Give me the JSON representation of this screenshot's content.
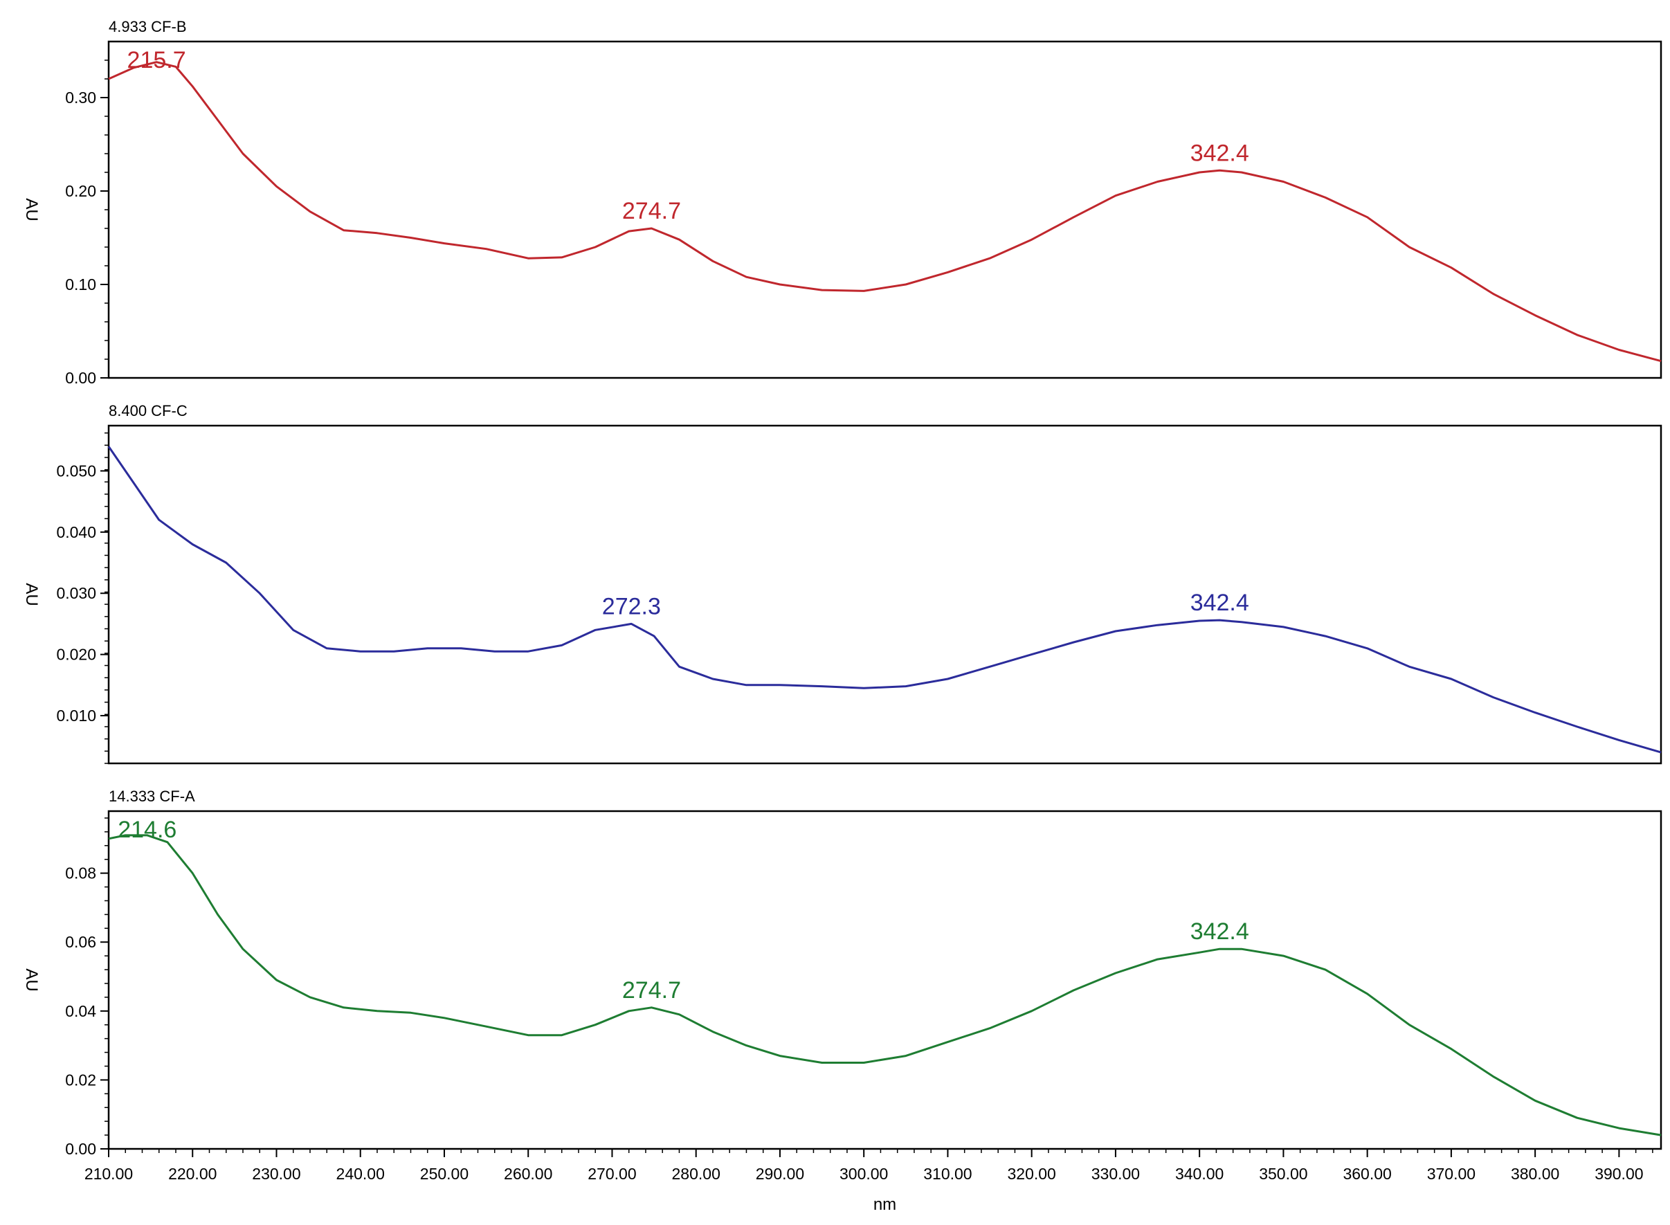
{
  "chart_data": [
    {
      "type": "line",
      "title": "4.933 CF-B",
      "ylabel": "AU",
      "xlabel": "",
      "xlim": [
        210,
        395
      ],
      "ylim": [
        0.0,
        0.36
      ],
      "y_ticks": [
        0.0,
        0.1,
        0.2,
        0.3
      ],
      "y_tick_labels": [
        "0.00",
        "0.10",
        "0.20",
        "0.30"
      ],
      "color": "#c0272d",
      "series": [
        {
          "x": [
            210,
            213,
            215.7,
            218,
            220,
            223,
            226,
            230,
            234,
            238,
            242,
            246,
            250,
            255,
            260,
            264,
            268,
            272,
            274.7,
            278,
            282,
            286,
            290,
            295,
            300,
            305,
            310,
            315,
            320,
            325,
            330,
            335,
            340,
            342.4,
            345,
            350,
            355,
            360,
            365,
            370,
            375,
            380,
            385,
            390,
            395
          ],
          "values": [
            0.32,
            0.332,
            0.338,
            0.333,
            0.312,
            0.276,
            0.24,
            0.205,
            0.178,
            0.158,
            0.155,
            0.15,
            0.144,
            0.138,
            0.128,
            0.129,
            0.14,
            0.157,
            0.16,
            0.148,
            0.125,
            0.108,
            0.1,
            0.094,
            0.093,
            0.1,
            0.113,
            0.128,
            0.148,
            0.172,
            0.195,
            0.21,
            0.22,
            0.222,
            0.22,
            0.21,
            0.193,
            0.172,
            0.14,
            0.118,
            0.09,
            0.067,
            0.046,
            0.03,
            0.018
          ]
        }
      ],
      "annotations": [
        {
          "x": 215.7,
          "y": 0.338,
          "text": "215.7"
        },
        {
          "x": 274.7,
          "y": 0.16,
          "text": "274.7"
        },
        {
          "x": 342.4,
          "y": 0.222,
          "text": "342.4"
        }
      ]
    },
    {
      "type": "line",
      "title": "8.400 CF-C",
      "ylabel": "AU",
      "xlabel": "",
      "xlim": [
        210,
        395
      ],
      "ylim": [
        0.0022,
        0.0574
      ],
      "y_ticks": [
        0.01,
        0.02,
        0.03,
        0.04,
        0.05
      ],
      "y_tick_labels": [
        "0.010",
        "0.020",
        "0.030",
        "0.040",
        "0.050"
      ],
      "color": "#2b2c9b",
      "series": [
        {
          "x": [
            210,
            213,
            216,
            220,
            224,
            228,
            232,
            236,
            240,
            244,
            248,
            252,
            256,
            260,
            264,
            268,
            272.3,
            275,
            278,
            282,
            286,
            290,
            295,
            300,
            305,
            310,
            315,
            320,
            325,
            330,
            335,
            340,
            342.4,
            345,
            350,
            355,
            360,
            365,
            370,
            375,
            380,
            385,
            390,
            395
          ],
          "values": [
            0.054,
            0.048,
            0.042,
            0.038,
            0.035,
            0.03,
            0.024,
            0.021,
            0.0205,
            0.0205,
            0.021,
            0.021,
            0.0205,
            0.0205,
            0.0215,
            0.024,
            0.025,
            0.023,
            0.018,
            0.016,
            0.015,
            0.015,
            0.0148,
            0.0145,
            0.0148,
            0.016,
            0.018,
            0.02,
            0.022,
            0.0238,
            0.0248,
            0.0255,
            0.0256,
            0.0253,
            0.0245,
            0.023,
            0.021,
            0.018,
            0.016,
            0.013,
            0.0105,
            0.0082,
            0.006,
            0.004
          ]
        }
      ],
      "annotations": [
        {
          "x": 272.3,
          "y": 0.025,
          "text": "272.3"
        },
        {
          "x": 342.4,
          "y": 0.0256,
          "text": "342.4"
        }
      ]
    },
    {
      "type": "line",
      "title": "14.333 CF-A",
      "ylabel": "AU",
      "xlabel": "nm",
      "xlim": [
        210,
        395
      ],
      "ylim": [
        0.0,
        0.098
      ],
      "y_ticks": [
        0.0,
        0.02,
        0.04,
        0.06,
        0.08
      ],
      "y_tick_labels": [
        "0.00",
        "0.02",
        "0.04",
        "0.06",
        "0.08"
      ],
      "x_ticks": [
        210,
        220,
        230,
        240,
        250,
        260,
        270,
        280,
        290,
        300,
        310,
        320,
        330,
        340,
        350,
        360,
        370,
        380,
        390
      ],
      "x_tick_labels": [
        "210.00",
        "220.00",
        "230.00",
        "240.00",
        "250.00",
        "260.00",
        "270.00",
        "280.00",
        "290.00",
        "300.00",
        "310.00",
        "320.00",
        "330.00",
        "340.00",
        "350.00",
        "360.00",
        "370.00",
        "380.00",
        "390.00"
      ],
      "color": "#1e7d32",
      "series": [
        {
          "x": [
            210,
            212,
            214.6,
            217,
            220,
            223,
            226,
            230,
            234,
            238,
            242,
            246,
            250,
            255,
            260,
            264,
            268,
            272,
            274.7,
            278,
            282,
            286,
            290,
            295,
            300,
            305,
            310,
            315,
            320,
            325,
            330,
            335,
            340,
            342.4,
            345,
            350,
            355,
            360,
            365,
            370,
            375,
            380,
            385,
            390,
            395
          ],
          "values": [
            0.09,
            0.091,
            0.091,
            0.089,
            0.08,
            0.068,
            0.058,
            0.049,
            0.044,
            0.041,
            0.04,
            0.0395,
            0.038,
            0.0355,
            0.033,
            0.033,
            0.036,
            0.04,
            0.041,
            0.039,
            0.034,
            0.03,
            0.027,
            0.025,
            0.025,
            0.027,
            0.031,
            0.035,
            0.04,
            0.046,
            0.051,
            0.055,
            0.057,
            0.058,
            0.058,
            0.056,
            0.052,
            0.045,
            0.036,
            0.029,
            0.021,
            0.014,
            0.009,
            0.006,
            0.004
          ]
        }
      ],
      "annotations": [
        {
          "x": 214.6,
          "y": 0.091,
          "text": "214.6"
        },
        {
          "x": 274.7,
          "y": 0.041,
          "text": "274.7"
        },
        {
          "x": 342.4,
          "y": 0.058,
          "text": "342.4"
        }
      ]
    }
  ]
}
